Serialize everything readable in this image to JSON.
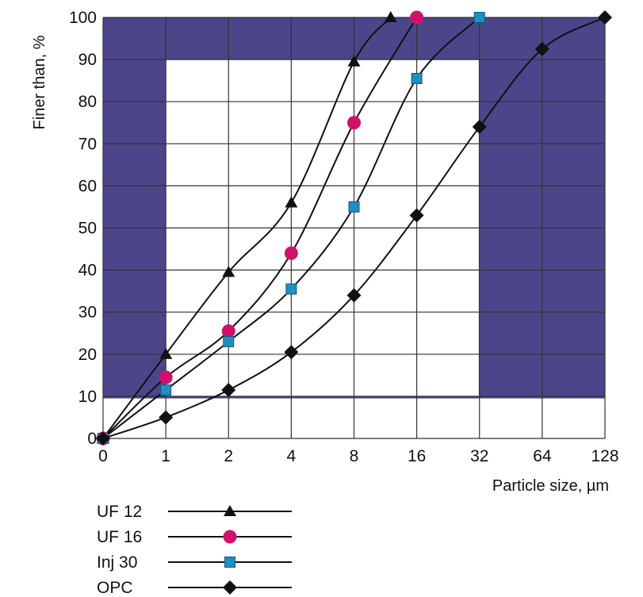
{
  "colors": {
    "frame": "#4b468a",
    "grid": "#333333",
    "uf12": "#111111",
    "uf16": "#d0116a",
    "inj30": "#1e8fc0",
    "opc": "#111111",
    "line": "#111111"
  },
  "chart_data": {
    "type": "line",
    "xlabel": "Particle size, µm",
    "ylabel": "Finer than, %",
    "x_scale": "log2 (0 at left edge)",
    "x_ticks": [
      "0",
      "1",
      "2",
      "4",
      "8",
      "16",
      "32",
      "64",
      "128"
    ],
    "y_ticks": [
      "0",
      "10",
      "20",
      "30",
      "40",
      "50",
      "60",
      "70",
      "80",
      "90",
      "100"
    ],
    "ylim": [
      0,
      100
    ],
    "grid": true,
    "legend_placement": "bottom-left",
    "series": [
      {
        "name": "UF 12",
        "marker": "triangle",
        "color_key": "uf12",
        "points": [
          [
            0,
            0
          ],
          [
            1,
            20
          ],
          [
            2,
            39.5
          ],
          [
            4,
            56
          ],
          [
            8,
            89.5
          ],
          [
            12,
            100
          ]
        ]
      },
      {
        "name": "UF 16",
        "marker": "circle",
        "color_key": "uf16",
        "points": [
          [
            0,
            0
          ],
          [
            1,
            14.5
          ],
          [
            2,
            25.5
          ],
          [
            4,
            44
          ],
          [
            8,
            75
          ],
          [
            16,
            100
          ]
        ]
      },
      {
        "name": "Inj 30",
        "marker": "square",
        "color_key": "inj30",
        "points": [
          [
            0,
            0
          ],
          [
            1,
            11.5
          ],
          [
            2,
            23
          ],
          [
            4,
            35.5
          ],
          [
            8,
            55
          ],
          [
            16,
            85.5
          ],
          [
            32,
            100
          ]
        ]
      },
      {
        "name": "OPC",
        "marker": "diamond",
        "color_key": "opc",
        "points": [
          [
            0,
            0
          ],
          [
            1,
            5
          ],
          [
            2,
            11.5
          ],
          [
            4,
            20.5
          ],
          [
            8,
            34
          ],
          [
            16,
            53
          ],
          [
            32,
            74
          ],
          [
            64,
            92.5
          ],
          [
            128,
            100
          ]
        ]
      }
    ]
  }
}
